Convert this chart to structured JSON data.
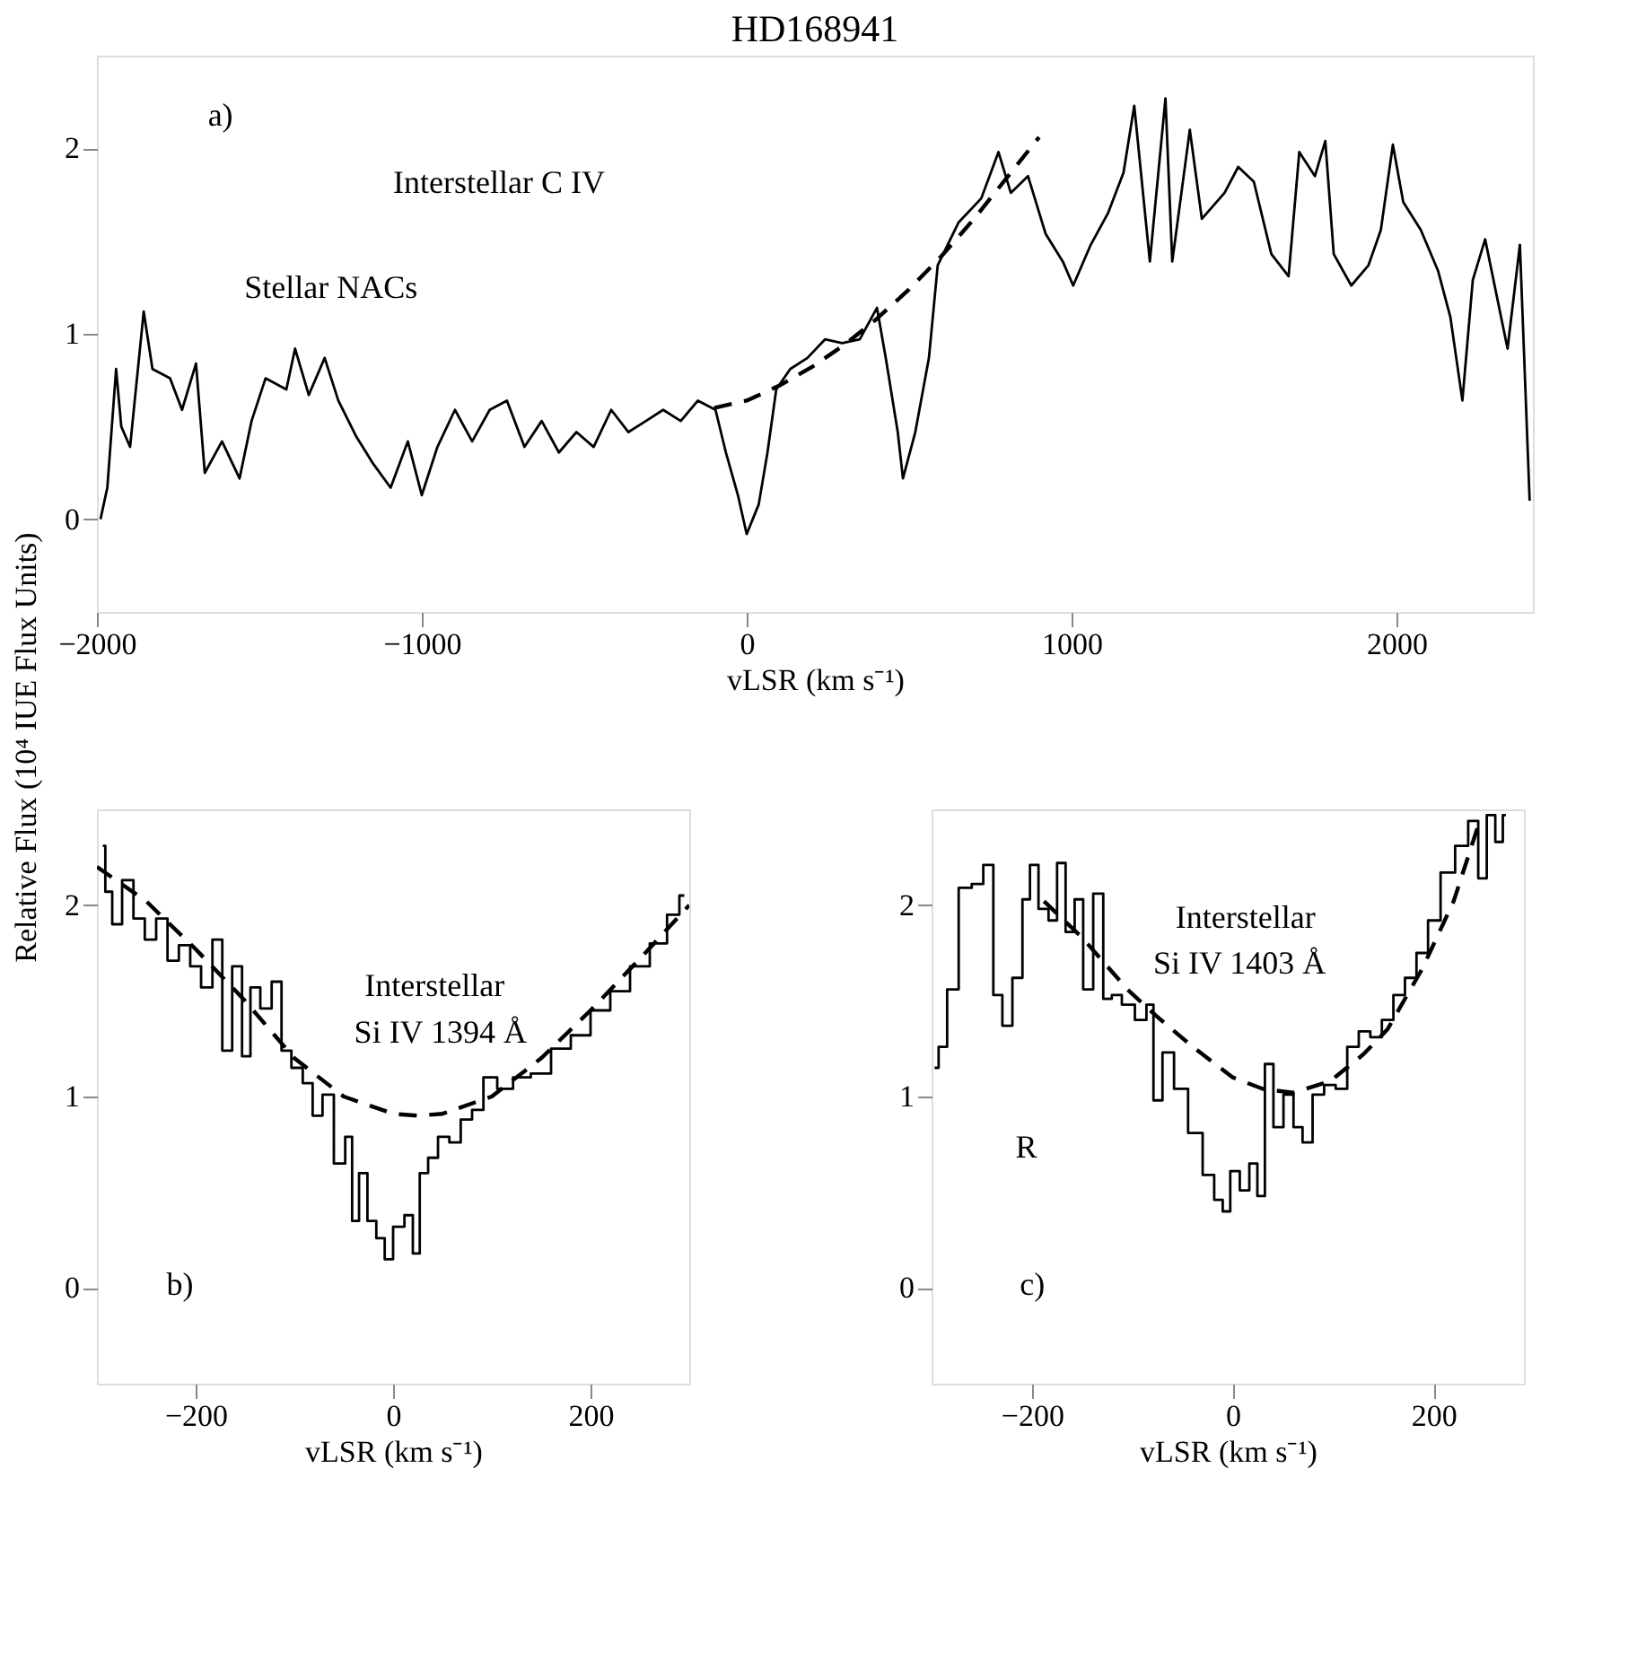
{
  "chart_data": [
    {
      "type": "line",
      "title": "HD168941",
      "xlabel": "vLSR (km s⁻¹)",
      "ylabel": "Relative Flux (10⁴ IUE Flux Units)",
      "xlim": [
        -2000,
        2420
      ],
      "ylim": [
        -0.5,
        2.5
      ],
      "xticks": [
        -2000,
        -1000,
        0,
        1000,
        2000
      ],
      "yticks": [
        0,
        1,
        2
      ],
      "series": [
        {
          "color": "#000000",
          "line_style": "solid",
          "x": [
            -1989,
            -1968,
            -1941,
            -1925,
            -1898,
            -1856,
            -1829,
            -1775,
            -1738,
            -1695,
            -1668,
            -1615,
            -1561,
            -1524,
            -1481,
            -1417,
            -1390,
            -1348,
            -1299,
            -1257,
            -1203,
            -1150,
            -1096,
            -1043,
            -1000,
            -952,
            -898,
            -845,
            -791,
            -738,
            -684,
            -631,
            -578,
            -524,
            -471,
            -417,
            -364,
            -310,
            -257,
            -203,
            -150,
            -96,
            -64,
            -27,
            0,
            37,
            64,
            91,
            134,
            187,
            241,
            294,
            348,
            401,
            428,
            465,
            481,
            519,
            561,
            588,
            652,
            722,
            775,
            813,
            866,
            920,
            973,
            1005,
            1059,
            1112,
            1160,
            1193,
            1241,
            1289,
            1310,
            1364,
            1401,
            1471,
            1513,
            1561,
            1615,
            1668,
            1701,
            1749,
            1781,
            1807,
            1861,
            1914,
            1952,
            1989,
            2021,
            2075,
            2128,
            2166,
            2203,
            2235,
            2273,
            2342,
            2380,
            2410
          ],
          "values": [
            0.0,
            0.17,
            0.81,
            0.5,
            0.39,
            1.12,
            0.81,
            0.76,
            0.59,
            0.84,
            0.25,
            0.42,
            0.22,
            0.53,
            0.76,
            0.7,
            0.92,
            0.67,
            0.87,
            0.64,
            0.45,
            0.3,
            0.17,
            0.42,
            0.13,
            0.39,
            0.59,
            0.42,
            0.59,
            0.64,
            0.39,
            0.53,
            0.36,
            0.47,
            0.39,
            0.59,
            0.47,
            0.53,
            0.59,
            0.53,
            0.64,
            0.59,
            0.36,
            0.13,
            -0.08,
            0.08,
            0.36,
            0.7,
            0.81,
            0.87,
            0.97,
            0.95,
            0.97,
            1.14,
            0.87,
            0.47,
            0.22,
            0.47,
            0.87,
            1.37,
            1.6,
            1.73,
            1.98,
            1.76,
            1.85,
            1.54,
            1.39,
            1.26,
            1.48,
            1.65,
            1.87,
            2.23,
            1.39,
            2.27,
            1.39,
            2.1,
            1.62,
            1.76,
            1.9,
            1.82,
            1.43,
            1.31,
            1.98,
            1.85,
            2.04,
            1.43,
            1.26,
            1.37,
            1.56,
            2.02,
            1.71,
            1.56,
            1.34,
            1.09,
            0.64,
            1.29,
            1.51,
            0.92,
            1.48,
            0.1
          ]
        },
        {
          "color": "#000000",
          "line_style": "dashed",
          "x": [
            -100,
            0,
            100,
            200,
            300,
            400,
            500,
            600,
            700,
            800,
            900
          ],
          "values": [
            0.6,
            0.64,
            0.72,
            0.82,
            0.94,
            1.08,
            1.24,
            1.42,
            1.62,
            1.84,
            2.06
          ]
        }
      ],
      "annotations": [
        "a)",
        "Stellar NACs",
        "Interstellar C IV"
      ]
    },
    {
      "type": "step",
      "xlabel": "vLSR (km s⁻¹)",
      "xlim": [
        -300,
        300
      ],
      "ylim": [
        -0.5,
        2.5
      ],
      "xticks": [
        -200,
        0,
        200
      ],
      "yticks": [
        0,
        1,
        2
      ],
      "series": [
        {
          "color": "#000000",
          "line_style": "solid",
          "x": [
            -294,
            -289,
            -280,
            -269,
            -257,
            -246,
            -234,
            -223,
            -211,
            -200,
            -189,
            -177,
            -169,
            -157,
            -149,
            -140,
            -129,
            -117,
            -109,
            -97,
            -86,
            -77,
            -66,
            -54,
            -43,
            -40,
            -29,
            -23,
            -11,
            -6,
            6,
            17,
            23,
            31,
            40,
            51,
            63,
            74,
            86,
            97,
            114,
            129,
            150,
            170,
            190,
            210,
            230,
            250,
            270,
            285,
            295
          ],
          "values": [
            2.31,
            2.07,
            1.9,
            2.13,
            1.93,
            1.82,
            1.93,
            1.71,
            1.79,
            1.68,
            1.57,
            1.82,
            1.24,
            1.68,
            1.21,
            1.57,
            1.46,
            1.6,
            1.24,
            1.15,
            1.07,
            0.9,
            1.01,
            0.65,
            0.79,
            0.35,
            0.6,
            0.35,
            0.26,
            0.15,
            0.32,
            0.38,
            0.18,
            0.6,
            0.68,
            0.79,
            0.76,
            0.88,
            0.93,
            1.1,
            1.04,
            1.1,
            1.12,
            1.25,
            1.32,
            1.45,
            1.55,
            1.68,
            1.8,
            1.95,
            2.05
          ]
        },
        {
          "type": "line",
          "color": "#000000",
          "line_style": "dashed",
          "x": [
            -300,
            -250,
            -200,
            -150,
            -100,
            -50,
            0,
            25,
            50,
            100,
            150,
            200,
            250,
            300
          ],
          "values": [
            2.2,
            2.02,
            1.77,
            1.5,
            1.2,
            1.0,
            0.91,
            0.9,
            0.91,
            1.0,
            1.2,
            1.45,
            1.72,
            2.0
          ]
        }
      ],
      "annotations": [
        "Interstellar",
        "Si IV 1394 Å",
        "b)"
      ]
    },
    {
      "type": "step",
      "xlabel": "vLSR (km s⁻¹)",
      "xlim": [
        -300,
        290
      ],
      "ylim": [
        -0.5,
        2.5
      ],
      "xticks": [
        -200,
        0,
        200
      ],
      "yticks": [
        0,
        1,
        2
      ],
      "series": [
        {
          "color": "#000000",
          "line_style": "solid",
          "x": [
            -297,
            -289,
            -280,
            -266,
            -254,
            -243,
            -234,
            -225,
            -214,
            -205,
            -199,
            -188,
            -179,
            -171,
            -162,
            -153,
            -145,
            -133,
            -125,
            -116,
            -105,
            -90,
            -82,
            -76,
            -64,
            -53,
            -36,
            -24,
            -13,
            -7,
            2,
            12,
            21,
            28,
            36,
            45,
            56,
            65,
            74,
            85,
            97,
            108,
            120,
            131,
            143,
            154,
            166,
            177,
            189,
            200,
            214,
            229,
            240,
            249,
            257,
            266,
            272
          ],
          "values": [
            1.15,
            1.26,
            1.56,
            2.09,
            2.11,
            2.21,
            1.53,
            1.37,
            1.62,
            2.03,
            2.21,
            1.98,
            1.92,
            2.22,
            1.86,
            2.03,
            1.56,
            2.06,
            1.51,
            1.53,
            1.48,
            1.4,
            1.48,
            0.98,
            1.23,
            1.04,
            0.81,
            0.59,
            0.46,
            0.4,
            0.61,
            0.51,
            0.65,
            0.48,
            1.17,
            0.84,
            1.01,
            0.84,
            0.76,
            1.01,
            1.06,
            1.04,
            1.26,
            1.34,
            1.31,
            1.4,
            1.53,
            1.62,
            1.75,
            1.92,
            2.17,
            2.31,
            2.44,
            2.14,
            2.47,
            2.33,
            2.47
          ]
        },
        {
          "type": "line",
          "color": "#000000",
          "line_style": "dashed",
          "x": [
            -188,
            -150,
            -105,
            -76,
            -40,
            0,
            30,
            60,
            97,
            130,
            154,
            189,
            220,
            246
          ],
          "values": [
            2.02,
            1.83,
            1.56,
            1.42,
            1.26,
            1.1,
            1.04,
            1.02,
            1.08,
            1.22,
            1.35,
            1.67,
            2.02,
            2.44
          ]
        }
      ],
      "annotations": [
        "Interstellar",
        "Si IV 1403 Å",
        "R",
        "c)"
      ]
    }
  ]
}
